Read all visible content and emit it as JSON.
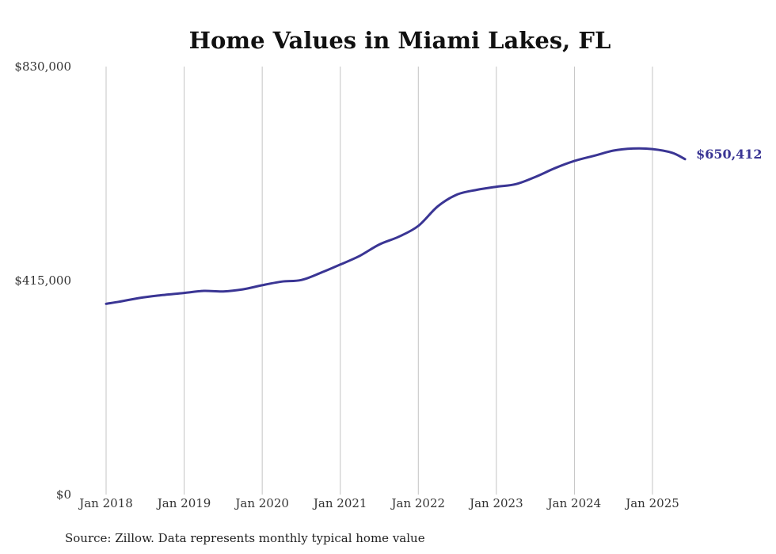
{
  "chart_data": {
    "type": "line",
    "title": "Home Values in Miami Lakes, FL",
    "xlabel": "",
    "ylabel": "",
    "source": "Source: Zillow. Data represents monthly typical home value",
    "ylim": [
      0,
      830000
    ],
    "y_ticks": [
      {
        "value": 0,
        "label": "$0"
      },
      {
        "value": 415000,
        "label": "$415,000"
      },
      {
        "value": 830000,
        "label": "$830,000"
      }
    ],
    "x_ticks": [
      {
        "value": "2018-01",
        "label": "Jan 2018"
      },
      {
        "value": "2019-01",
        "label": "Jan 2019"
      },
      {
        "value": "2020-01",
        "label": "Jan 2020"
      },
      {
        "value": "2021-01",
        "label": "Jan 2021"
      },
      {
        "value": "2022-01",
        "label": "Jan 2022"
      },
      {
        "value": "2023-01",
        "label": "Jan 2023"
      },
      {
        "value": "2024-01",
        "label": "Jan 2024"
      },
      {
        "value": "2025-01",
        "label": "Jan 2025"
      }
    ],
    "grid": {
      "vertical": true,
      "horizontal": false
    },
    "line_color": "#3a3594",
    "end_label": "$650,412",
    "series": [
      {
        "points": [
          {
            "x": "2018-01",
            "y": 370000
          },
          {
            "x": "2018-03",
            "y": 374000
          },
          {
            "x": "2018-06",
            "y": 381000
          },
          {
            "x": "2018-09",
            "y": 386000
          },
          {
            "x": "2019-01",
            "y": 391000
          },
          {
            "x": "2019-04",
            "y": 395000
          },
          {
            "x": "2019-07",
            "y": 394000
          },
          {
            "x": "2019-10",
            "y": 398000
          },
          {
            "x": "2020-01",
            "y": 406000
          },
          {
            "x": "2020-04",
            "y": 413000
          },
          {
            "x": "2020-07",
            "y": 416000
          },
          {
            "x": "2020-10",
            "y": 430000
          },
          {
            "x": "2021-01",
            "y": 446000
          },
          {
            "x": "2021-04",
            "y": 463000
          },
          {
            "x": "2021-07",
            "y": 485000
          },
          {
            "x": "2021-10",
            "y": 500000
          },
          {
            "x": "2022-01",
            "y": 521000
          },
          {
            "x": "2022-04",
            "y": 559000
          },
          {
            "x": "2022-07",
            "y": 582000
          },
          {
            "x": "2022-10",
            "y": 591000
          },
          {
            "x": "2023-01",
            "y": 597000
          },
          {
            "x": "2023-04",
            "y": 602000
          },
          {
            "x": "2023-07",
            "y": 616000
          },
          {
            "x": "2023-10",
            "y": 633000
          },
          {
            "x": "2024-01",
            "y": 647000
          },
          {
            "x": "2024-04",
            "y": 657000
          },
          {
            "x": "2024-07",
            "y": 667000
          },
          {
            "x": "2024-10",
            "y": 671000
          },
          {
            "x": "2025-01",
            "y": 670000
          },
          {
            "x": "2025-04",
            "y": 663000
          },
          {
            "x": "2025-06",
            "y": 650412
          }
        ]
      }
    ]
  }
}
